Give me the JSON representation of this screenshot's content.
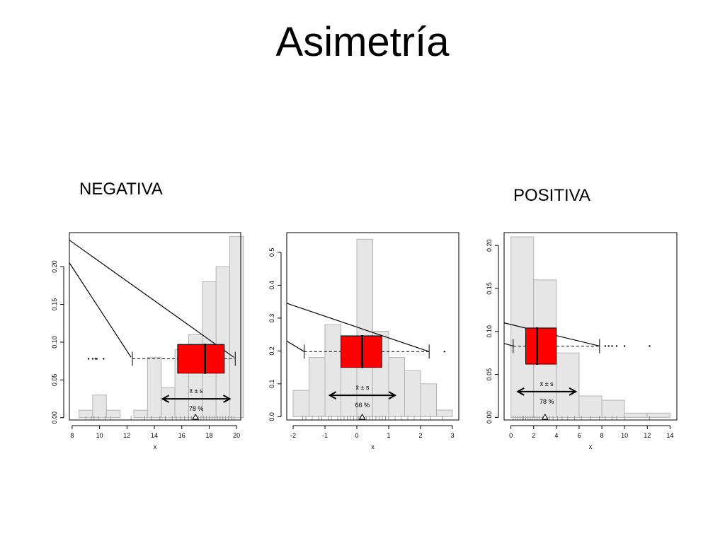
{
  "title": "Asimetría",
  "labels": {
    "negativa": "NEGATIVA",
    "positiva": "POSITIVA"
  },
  "colors": {
    "bars": "#e6e6e6",
    "bar_stroke": "#b4b4b4",
    "box": "#ff0000",
    "rug": "#9a9a9a"
  },
  "chart_data": [
    {
      "type": "bar",
      "xlabel": "x",
      "xlim": [
        7.8,
        20.3
      ],
      "ylim": [
        -0.003,
        0.245
      ],
      "x_ticks": [
        "8",
        "10",
        "12",
        "14",
        "16",
        "18",
        "20"
      ],
      "x_tick_values": [
        8,
        10,
        12,
        14,
        16,
        18,
        20
      ],
      "y_ticks": [
        "0.00",
        "0.05",
        "0.10",
        "0.15",
        "0.20"
      ],
      "y_tick_values": [
        0,
        0.05,
        0.1,
        0.15,
        0.2
      ],
      "bins": [
        8.5,
        9.5,
        10.5,
        11.5,
        12.5,
        13.5,
        14.5,
        15.5,
        16.5,
        17.5,
        18.5,
        19.5
      ],
      "values": [
        0.01,
        0.03,
        0.01,
        0,
        0.01,
        0.08,
        0.04,
        0.09,
        0.11,
        0.18,
        0.2,
        0.24
      ],
      "boxplot": {
        "y": 0.078,
        "box_height": 0.038,
        "whisker_low": 12.4,
        "q1": 15.7,
        "median": 17.7,
        "q3": 19.1,
        "whisker_high": 19.9
      },
      "outliers": [
        9.2,
        9.5,
        9.7,
        9.8,
        10.3
      ],
      "mean": 17.0,
      "mean_sd": {
        "low": 14.6,
        "high": 19.5,
        "y": 0.025
      },
      "mean_sd_label": "x̄ ± s",
      "percent_label": "78 %",
      "lines": [
        [
          [
            7.8,
            0.235
          ],
          [
            19.8,
            0.08
          ]
        ],
        [
          [
            7.8,
            0.205
          ],
          [
            12.3,
            0.08
          ]
        ]
      ],
      "rug": [
        9.0,
        9.4,
        9.6,
        9.9,
        10.4,
        10.8,
        12.3,
        13.3,
        13.8,
        14.4,
        14.8,
        15.3,
        15.6,
        15.9,
        16.2,
        16.5,
        16.7,
        17.0,
        17.2,
        17.4,
        17.6,
        17.8,
        18.0,
        18.2,
        18.4,
        18.6,
        18.8,
        19.0,
        19.2,
        19.4,
        19.6,
        19.8
      ]
    },
    {
      "type": "bar",
      "xlabel": "x",
      "xlim": [
        -2.2,
        3.2
      ],
      "ylim": [
        -0.01,
        0.56
      ],
      "x_ticks": [
        "-2",
        "-1",
        "0",
        "1",
        "2",
        "3"
      ],
      "x_tick_values": [
        -2,
        -1,
        0,
        1,
        2,
        3
      ],
      "y_ticks": [
        "0.0",
        "0.1",
        "0.2",
        "0.3",
        "0.4",
        "0.5"
      ],
      "y_tick_values": [
        0,
        0.1,
        0.2,
        0.3,
        0.4,
        0.5
      ],
      "bins": [
        -2.0,
        -1.5,
        -1.0,
        -0.5,
        0.0,
        0.5,
        1.0,
        1.5,
        2.0,
        2.5
      ],
      "values": [
        0.08,
        0.18,
        0.28,
        0.24,
        0.54,
        0.26,
        0.18,
        0.14,
        0.1,
        0.02
      ],
      "boxplot": {
        "y": 0.198,
        "box_height": 0.096,
        "whisker_low": -1.65,
        "q1": -0.5,
        "median": 0.17,
        "q3": 0.78,
        "whisker_high": 2.27
      },
      "outliers": [
        2.75
      ],
      "mean": 0.17,
      "mean_sd": {
        "low": -0.85,
        "high": 1.2,
        "y": 0.065
      },
      "mean_sd_label": "x̄ ± s",
      "percent_label": "66 %",
      "lines": [
        [
          [
            -2.2,
            0.345
          ],
          [
            2.27,
            0.198
          ]
        ],
        [
          [
            -2.2,
            0.23
          ],
          [
            -1.65,
            0.198
          ]
        ]
      ],
      "rug": [
        -1.7,
        -1.6,
        -1.4,
        -1.2,
        -1.1,
        -0.9,
        -0.8,
        -0.6,
        -0.5,
        -0.4,
        -0.3,
        -0.2,
        -0.1,
        0.0,
        0.05,
        0.1,
        0.15,
        0.2,
        0.3,
        0.4,
        0.5,
        0.6,
        0.7,
        0.8,
        0.9,
        1.0,
        1.2,
        1.4,
        1.6,
        1.8,
        2.0,
        2.3,
        2.7
      ]
    },
    {
      "type": "bar",
      "xlabel": "x",
      "xlim": [
        -0.6,
        14.6
      ],
      "ylim": [
        -0.003,
        0.215
      ],
      "x_ticks": [
        "0",
        "2",
        "4",
        "6",
        "8",
        "10",
        "12",
        "14"
      ],
      "x_tick_values": [
        0,
        2,
        4,
        6,
        8,
        10,
        12,
        14
      ],
      "y_ticks": [
        "0.00",
        "0.05",
        "0.10",
        "0.15",
        "0.20"
      ],
      "y_tick_values": [
        0,
        0.05,
        0.1,
        0.15,
        0.2
      ],
      "bins": [
        0,
        2,
        4,
        6,
        8,
        10,
        12
      ],
      "bin_width": 2,
      "values": [
        0.21,
        0.16,
        0.075,
        0.025,
        0.02,
        0.005,
        0.005
      ],
      "boxplot": {
        "y": 0.083,
        "box_height": 0.042,
        "whisker_low": 0.2,
        "q1": 1.3,
        "median": 2.3,
        "q3": 4.0,
        "whisker_high": 7.8
      },
      "outliers": [
        8.3,
        8.6,
        8.9,
        9.3,
        10.0,
        12.2
      ],
      "mean": 3.0,
      "mean_sd": {
        "low": 0.6,
        "high": 5.7,
        "y": 0.03
      },
      "mean_sd_label": "x̄ ± s",
      "percent_label": "78 %",
      "lines": [
        [
          [
            -0.6,
            0.11
          ],
          [
            7.8,
            0.083
          ]
        ],
        [
          [
            -0.6,
            0.086
          ],
          [
            0.2,
            0.083
          ]
        ]
      ],
      "rug": [
        0.2,
        0.4,
        0.6,
        0.8,
        1.0,
        1.1,
        1.3,
        1.5,
        1.7,
        1.9,
        2.1,
        2.3,
        2.5,
        2.8,
        3.1,
        3.4,
        3.7,
        4.1,
        4.5,
        5.0,
        5.6,
        6.2,
        7.0,
        7.8,
        8.3,
        8.9,
        9.3,
        10.0,
        12.2
      ]
    }
  ]
}
